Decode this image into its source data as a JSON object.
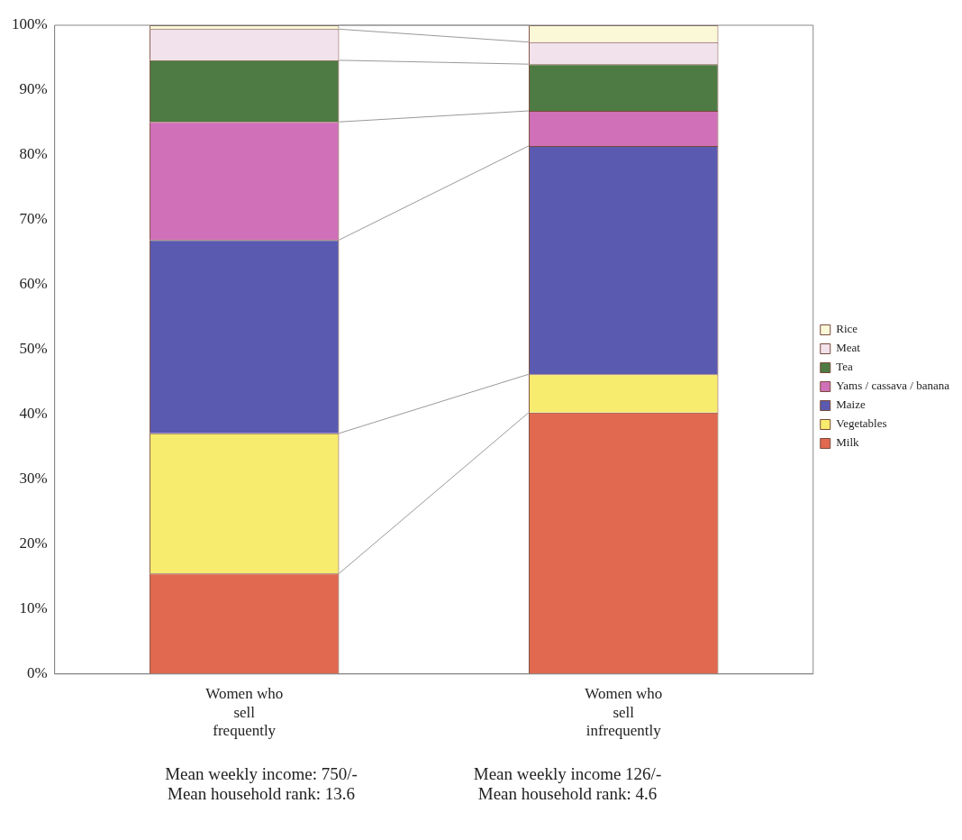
{
  "chart_data": {
    "type": "bar",
    "stacked": true,
    "categories": [
      "Women who\nsell\nfrequently",
      "Women who\nsell\ninfrequently"
    ],
    "series": [
      {
        "name": "Milk",
        "color": "#e0694f",
        "values": [
          15.5,
          40.3
        ]
      },
      {
        "name": "Vegetables",
        "color": "#f7ec6e",
        "values": [
          21.6,
          5.9
        ]
      },
      {
        "name": "Maize",
        "color": "#5a5ab0",
        "values": [
          29.8,
          35.2
        ]
      },
      {
        "name": "Yams / cassava / banana",
        "color": "#d070b8",
        "values": [
          18.2,
          5.4
        ]
      },
      {
        "name": "Tea",
        "color": "#4e7a44",
        "values": [
          9.5,
          7.2
        ]
      },
      {
        "name": "Meat",
        "color": "#f2e2ec",
        "values": [
          4.8,
          3.4
        ]
      },
      {
        "name": "Rice",
        "color": "#fbf8d8",
        "values": [
          0.6,
          2.6
        ]
      }
    ],
    "ylim": [
      0,
      100
    ],
    "yticks": [
      {
        "value": 0,
        "label": "0%"
      },
      {
        "value": 10,
        "label": "10%"
      },
      {
        "value": 20,
        "label": "20%"
      },
      {
        "value": 30,
        "label": "30%"
      },
      {
        "value": 40,
        "label": "40%"
      },
      {
        "value": 50,
        "label": "50%"
      },
      {
        "value": 60,
        "label": "60%"
      },
      {
        "value": 70,
        "label": "70%"
      },
      {
        "value": 80,
        "label": "80%"
      },
      {
        "value": 90,
        "label": "90%"
      },
      {
        "value": 100,
        "label": "100%"
      }
    ],
    "grid": false,
    "legend": "right",
    "annotations": [
      "Mean weekly income: 750/-",
      "Mean weekly income 126/-",
      "Mean household rank: 13.6",
      "Mean household rank: 4.6"
    ]
  }
}
